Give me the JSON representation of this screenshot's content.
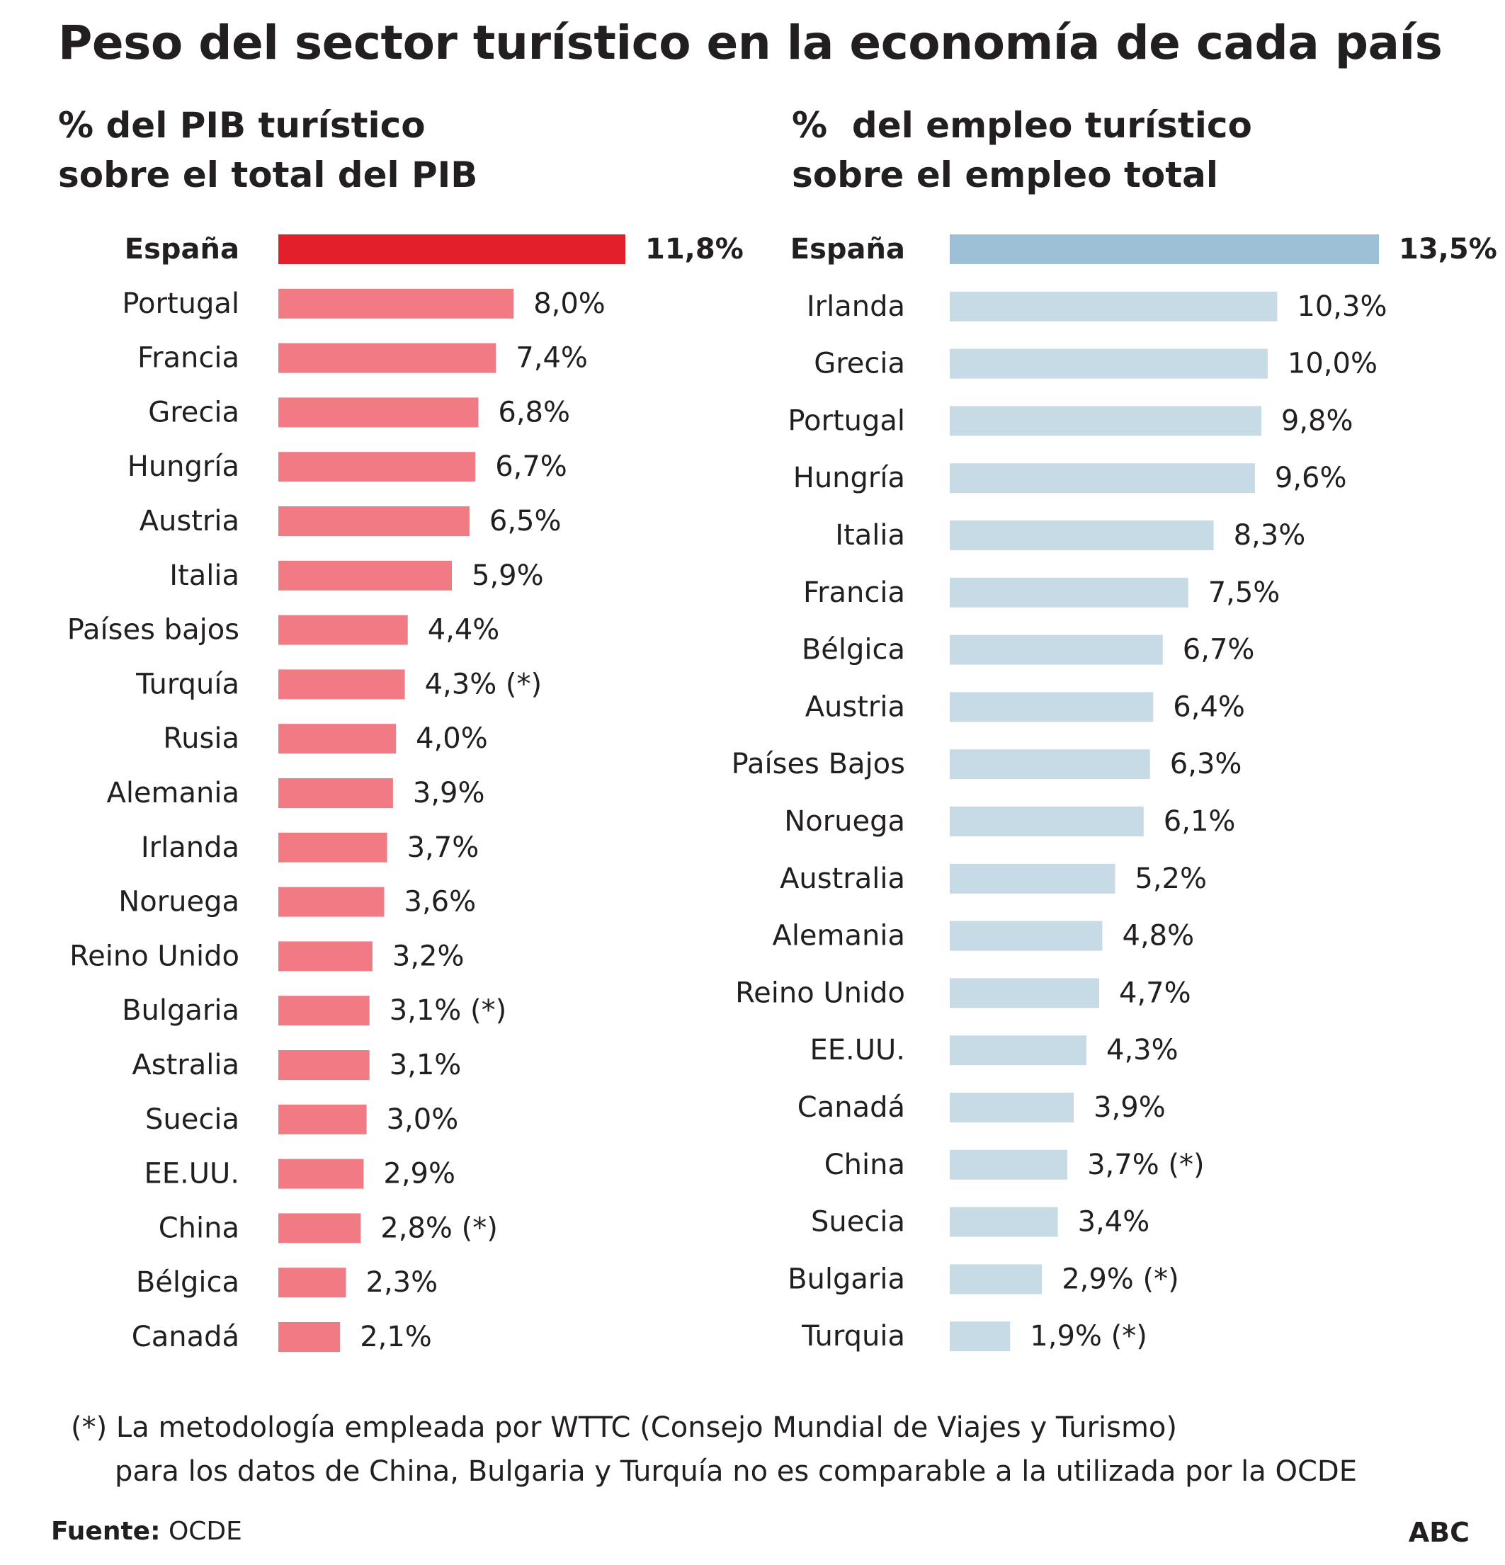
{
  "title": "Peso del sector turístico en la economía de cada país",
  "colors": {
    "pib_highlight": "#e41f2c",
    "pib_bar": "#f07b84",
    "emp_highlight": "#9ec0d7",
    "emp_bar": "#c7dbe7",
    "text": "#231f20"
  },
  "chart_data": [
    {
      "type": "bar",
      "orientation": "horizontal",
      "title": "% del PIB turístico sobre el total del PIB",
      "title_lines": [
        "% del PIB turístico",
        "sobre el total del PIB"
      ],
      "unit": "%",
      "xlim": [
        0,
        11.8
      ],
      "highlight": "España",
      "categories": [
        "España",
        "Portugal",
        "Francia",
        "Grecia",
        "Hungría",
        "Austria",
        "Italia",
        "Países bajos",
        "Turquía",
        "Rusia",
        "Alemania",
        "Irlanda",
        "Noruega",
        "Reino Unido",
        "Bulgaria",
        "Astralia",
        "Suecia",
        "EE.UU.",
        "China",
        "Bélgica",
        "Canadá"
      ],
      "values": [
        11.8,
        8.0,
        7.4,
        6.8,
        6.7,
        6.5,
        5.9,
        4.4,
        4.3,
        4.0,
        3.9,
        3.7,
        3.6,
        3.2,
        3.1,
        3.1,
        3.0,
        2.9,
        2.8,
        2.3,
        2.1
      ],
      "labels": [
        "11,8%",
        "8,0%",
        "7,4%",
        "6,8%",
        "6,7%",
        "6,5%",
        "5,9%",
        "4,4%",
        "4,3% (*)",
        "4,0%",
        "3,9%",
        "3,7%",
        "3,6%",
        "3,2%",
        "3,1% (*)",
        "3,1%",
        "3,0%",
        "2,9%",
        "2,8% (*)",
        "2,3%",
        "2,1%"
      ]
    },
    {
      "type": "bar",
      "orientation": "horizontal",
      "title": "% del empleo turístico sobre el empleo total",
      "title_lines": [
        "%  del empleo turístico",
        "sobre el empleo total"
      ],
      "unit": "%",
      "xlim": [
        0,
        13.5
      ],
      "highlight": "España",
      "categories": [
        "España",
        "Irlanda",
        "Grecia",
        "Portugal",
        "Hungría",
        "Italia",
        "Francia",
        "Bélgica",
        "Austria",
        "Países Bajos",
        "Noruega",
        "Australia",
        "Alemania",
        "Reino Unido",
        "EE.UU.",
        "Canadá",
        "China",
        "Suecia",
        "Bulgaria",
        "Turquia"
      ],
      "values": [
        13.5,
        10.3,
        10.0,
        9.8,
        9.6,
        8.3,
        7.5,
        6.7,
        6.4,
        6.3,
        6.1,
        5.2,
        4.8,
        4.7,
        4.3,
        3.9,
        3.7,
        3.4,
        2.9,
        1.9
      ],
      "labels": [
        "13,5%",
        "10,3%",
        "10,0%",
        "9,8%",
        "9,6%",
        "8,3%",
        "7,5%",
        "6,7%",
        "6,4%",
        "6,3%",
        "6,1%",
        "5,2%",
        "4,8%",
        "4,7%",
        "4,3%",
        "3,9%",
        "3,7% (*)",
        "3,4%",
        "2,9% (*)",
        "1,9% (*)"
      ]
    }
  ],
  "footnote": {
    "line1": "(*) La metodología empleada por WTTC (Consejo Mundial de Viajes y Turismo)",
    "line2": "para los datos de China, Bulgaria y Turquía no es comparable a la utilizada por la OCDE"
  },
  "source": {
    "label": "Fuente:",
    "value": "OCDE"
  },
  "brand": "ABC"
}
